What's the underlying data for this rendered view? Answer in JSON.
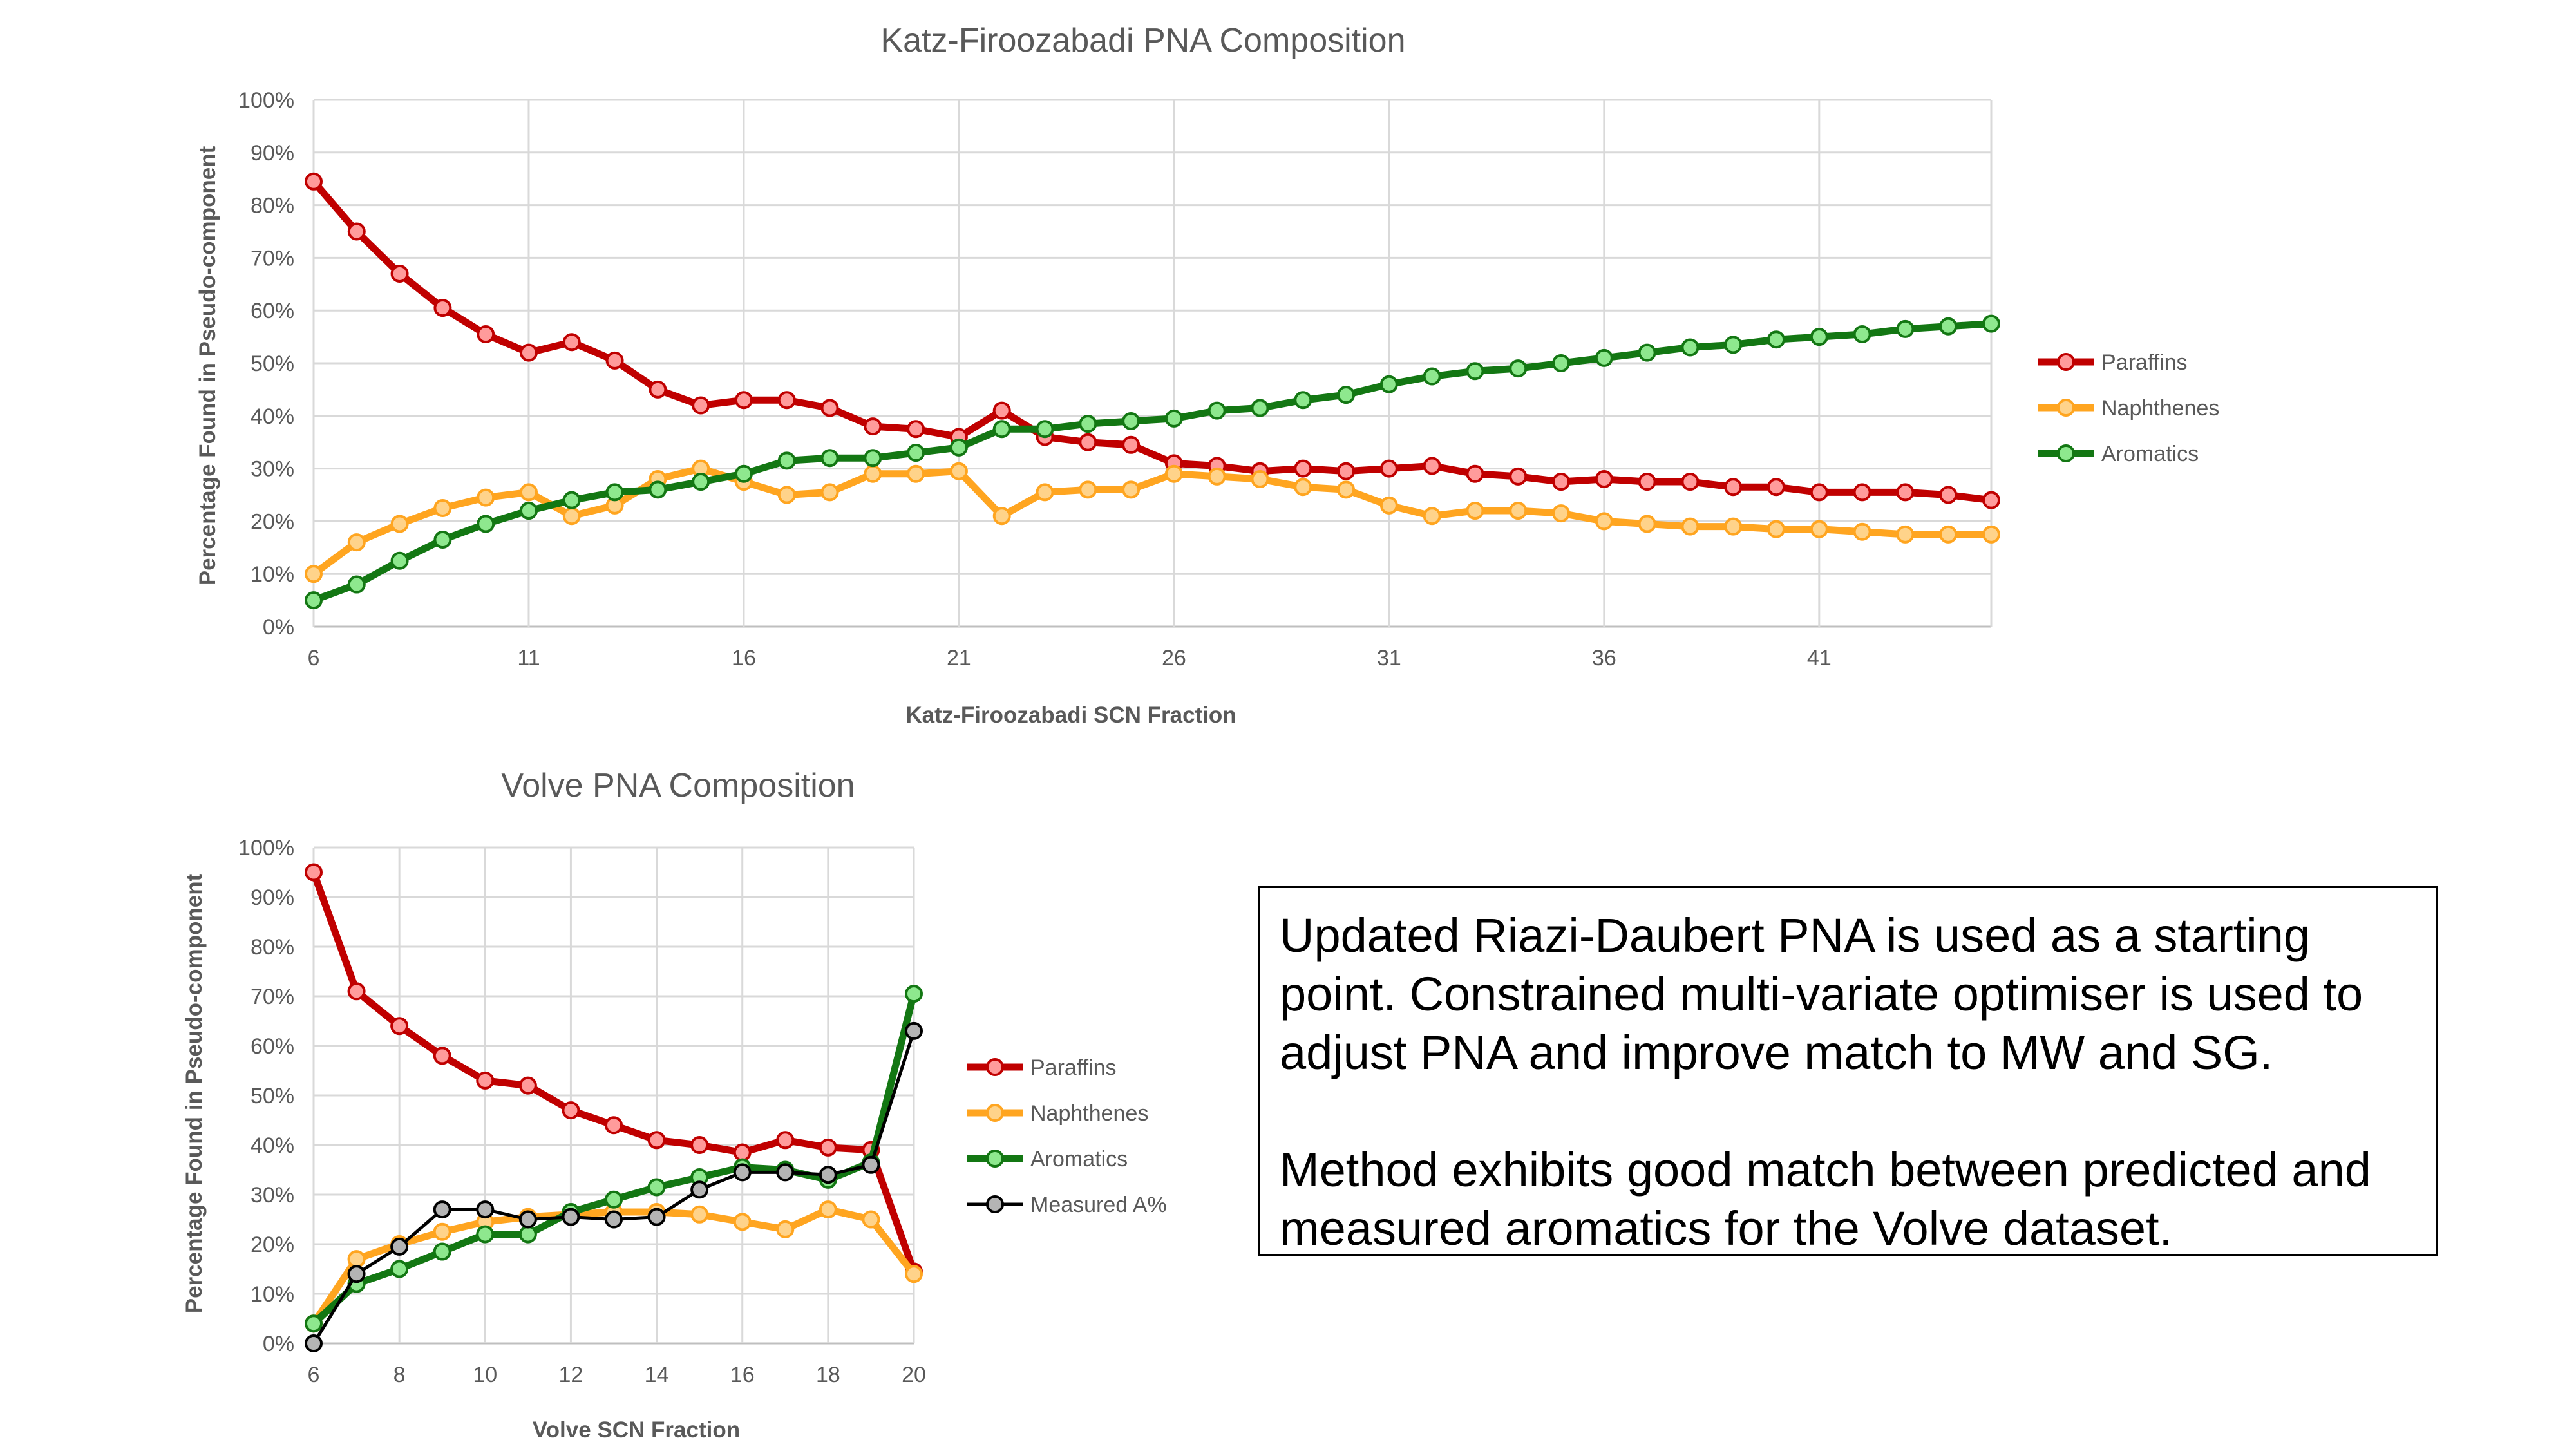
{
  "chart_data": [
    {
      "type": "line",
      "title": "Katz-Firoozabadi PNA Composition",
      "xlabel": "Katz-Firoozabadi SCN Fraction",
      "ylabel": "Percentage Found in Pseudo-component",
      "x": [
        6,
        7,
        8,
        9,
        10,
        11,
        12,
        13,
        14,
        15,
        16,
        17,
        18,
        19,
        20,
        21,
        22,
        23,
        24,
        25,
        26,
        27,
        28,
        29,
        30,
        31,
        32,
        33,
        34,
        35,
        36,
        37,
        38,
        39,
        40,
        41,
        42,
        43,
        44,
        45
      ],
      "xticks": [
        "6",
        "11",
        "16",
        "21",
        "26",
        "31",
        "36",
        "41"
      ],
      "xlim": [
        6,
        45
      ],
      "ylim": [
        0,
        100
      ],
      "yticks": [
        "0%",
        "10%",
        "20%",
        "30%",
        "40%",
        "50%",
        "60%",
        "70%",
        "80%",
        "90%",
        "100%"
      ],
      "grid": true,
      "legend_position": "right",
      "series": [
        {
          "name": "Paraffins",
          "color": "#c00000",
          "marker_fill": "#ff9b9b",
          "values": [
            84.5,
            75,
            67,
            60.5,
            55.5,
            52,
            54,
            50.5,
            45,
            42,
            43,
            43,
            41.5,
            38,
            37.5,
            36,
            41,
            36,
            35,
            34.5,
            31,
            30.5,
            29.5,
            30,
            29.5,
            30,
            30.5,
            29,
            28.5,
            27.5,
            28,
            27.5,
            27.5,
            26.5,
            26.5,
            25.5,
            25.5,
            25.5,
            25,
            24
          ]
        },
        {
          "name": "Naphthenes",
          "color": "#ffa520",
          "marker_fill": "#ffd38a",
          "values": [
            10,
            16,
            19.5,
            22.5,
            24.5,
            25.5,
            21,
            23,
            28,
            30,
            27.5,
            25,
            25.5,
            29,
            29,
            29.5,
            21,
            25.5,
            26,
            26,
            29,
            28.5,
            28,
            26.5,
            26,
            23,
            21,
            22,
            22,
            21.5,
            20,
            19.5,
            19,
            19,
            18.5,
            18.5,
            18,
            17.5,
            17.5,
            17.5
          ]
        },
        {
          "name": "Aromatics",
          "color": "#137713",
          "marker_fill": "#8ee88e",
          "values": [
            5,
            8,
            12.5,
            16.5,
            19.5,
            22,
            24,
            25.5,
            26,
            27.5,
            29,
            31.5,
            32,
            32,
            33,
            34,
            37.5,
            37.5,
            38.5,
            39,
            39.5,
            41,
            41.5,
            43,
            44,
            46,
            47.5,
            48.5,
            49,
            50,
            51,
            52,
            53,
            53.5,
            54.5,
            55,
            55.5,
            56.5,
            57,
            57.5
          ]
        }
      ]
    },
    {
      "type": "line",
      "title": "Volve PNA Composition",
      "xlabel": "Volve SCN Fraction",
      "ylabel": "Percentage Found in Pseudo-component",
      "x": [
        6,
        7,
        8,
        9,
        10,
        11,
        12,
        13,
        14,
        15,
        16,
        17,
        18,
        19,
        20
      ],
      "xticks": [
        "6",
        "8",
        "10",
        "12",
        "14",
        "16",
        "18",
        "20"
      ],
      "xlim": [
        6,
        20
      ],
      "ylim": [
        0,
        100
      ],
      "yticks": [
        "0%",
        "10%",
        "20%",
        "30%",
        "40%",
        "50%",
        "60%",
        "70%",
        "80%",
        "90%",
        "100%"
      ],
      "grid": true,
      "legend_position": "right",
      "series": [
        {
          "name": "Paraffins",
          "color": "#c00000",
          "marker_fill": "#ff9b9b",
          "values": [
            95,
            71,
            64,
            58,
            53,
            52,
            47,
            44,
            41,
            40,
            38.5,
            41,
            39.5,
            39,
            14.5
          ]
        },
        {
          "name": "Naphthenes",
          "color": "#ffa520",
          "marker_fill": "#ffd38a",
          "values": [
            4,
            17,
            20,
            22.5,
            24.5,
            25.5,
            26,
            26.5,
            26.5,
            26,
            24.5,
            23,
            27,
            25,
            14
          ]
        },
        {
          "name": "Aromatics",
          "color": "#137713",
          "marker_fill": "#8ee88e",
          "values": [
            4,
            12,
            15,
            18.5,
            22,
            22,
            26.5,
            29,
            31.5,
            33.5,
            35.5,
            35,
            33,
            36.5,
            70.5
          ]
        },
        {
          "name": "Measured A%",
          "color": "#000000",
          "marker_fill": "#b4b4b4",
          "values": [
            0,
            14,
            19.5,
            27,
            27,
            25,
            25.5,
            25,
            25.5,
            31,
            34.5,
            34.5,
            34,
            36,
            63
          ]
        }
      ]
    }
  ],
  "note": {
    "paragraph1": "Updated Riazi-Daubert PNA is used as a starting point. Constrained multi-variate optimiser is used to adjust PNA and improve match to MW and SG.",
    "paragraph2": "Method exhibits good match between predicted and measured aromatics for the Volve dataset."
  }
}
